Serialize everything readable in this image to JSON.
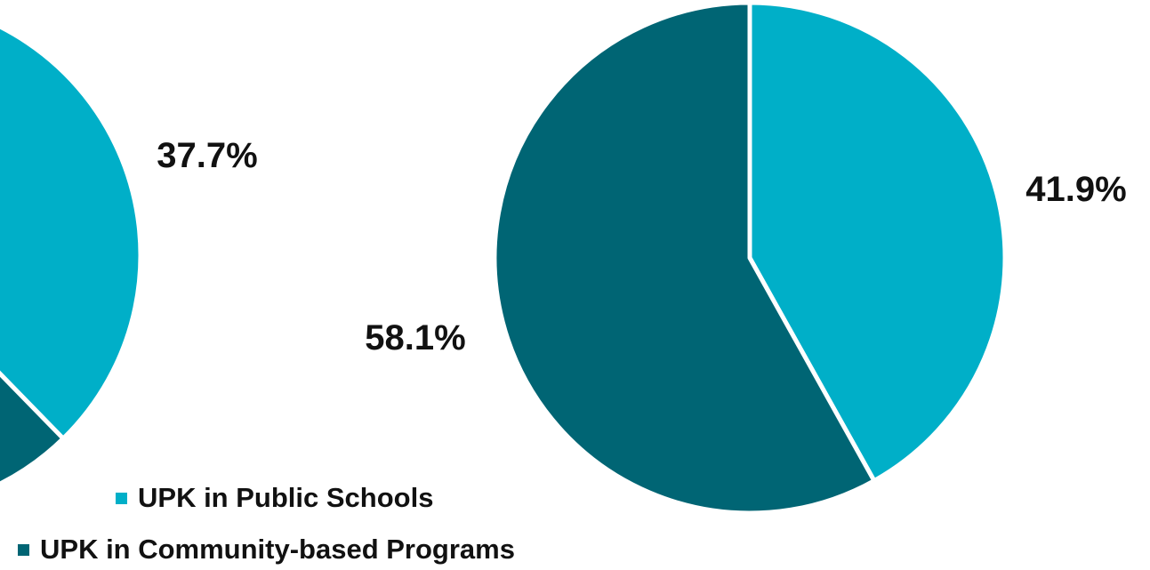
{
  "chart_data": [
    {
      "type": "pie",
      "slices": [
        {
          "name": "UPK in Public Schools",
          "value": 37.7,
          "label": "37.7%",
          "color": "#00AFC8"
        },
        {
          "name": "UPK in Community-based Programs",
          "value": 62.3,
          "label": "",
          "color": "#006574"
        }
      ],
      "start_angle_deg": 0,
      "direction": "clockwise"
    },
    {
      "type": "pie",
      "slices": [
        {
          "name": "UPK in Public Schools",
          "value": 41.9,
          "label": "41.9%",
          "color": "#00AFC8"
        },
        {
          "name": "UPK in Community-based Programs",
          "value": 58.1,
          "label": "58.1%",
          "color": "#006574"
        }
      ],
      "start_angle_deg": 0,
      "direction": "clockwise"
    }
  ],
  "legend": {
    "items": [
      {
        "name": "UPK in Public Schools",
        "color": "#00AFC8"
      },
      {
        "name": "UPK in Community-based Programs",
        "color": "#006574"
      }
    ]
  },
  "colors": {
    "public_schools": "#00AFC8",
    "community_programs": "#006574",
    "slice_border": "#ffffff"
  }
}
